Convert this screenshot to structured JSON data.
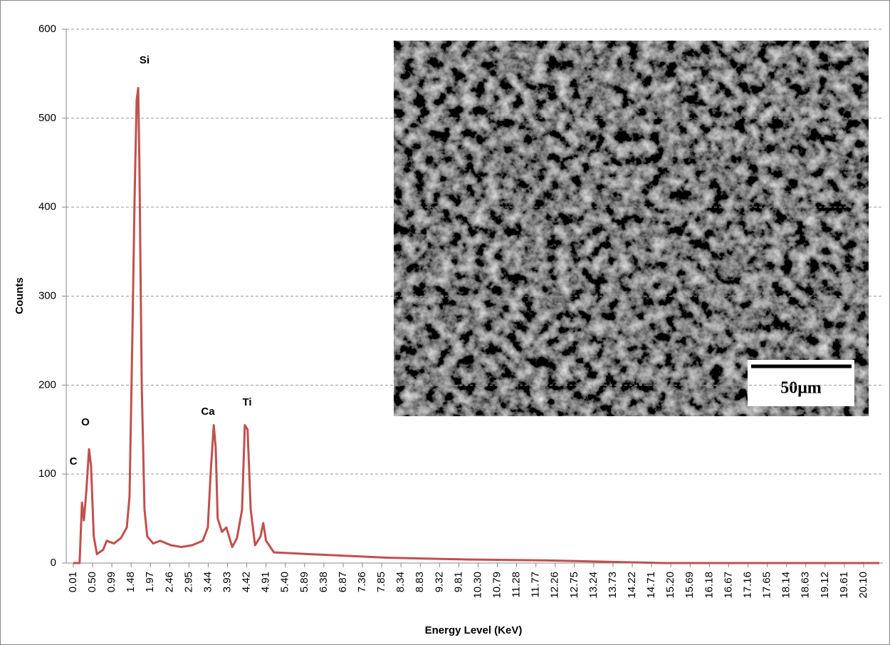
{
  "chart_data": {
    "type": "line",
    "x_label": "Energy Level (KeV)",
    "y_label": "Counts",
    "annotations": [
      "C",
      "O",
      "Si",
      "Ca",
      "Ti"
    ],
    "inset_scale_label": "50μm",
    "color": "#c0504d",
    "grid": true,
    "xlim": [
      -0.17,
      20.59
    ],
    "ylim": [
      0,
      600
    ],
    "yticks": [
      0,
      100,
      200,
      300,
      400,
      500,
      600
    ],
    "xticks": [
      0.01,
      {
        "value": 0.5,
        "label": "0.50"
      },
      0.99,
      1.48,
      1.97,
      2.46,
      2.95,
      3.44,
      3.93,
      4.42,
      4.91,
      {
        "value": 5.4,
        "label": "5.40"
      },
      5.89,
      6.38,
      6.87,
      7.36,
      7.85,
      8.34,
      8.83,
      9.32,
      9.81,
      {
        "value": 10.3,
        "label": "10.30"
      },
      10.79,
      11.28,
      11.77,
      12.26,
      12.75,
      13.24,
      13.73,
      14.22,
      14.71,
      {
        "value": 15.2,
        "label": "15.20"
      },
      15.69,
      16.18,
      16.67,
      17.16,
      17.65,
      18.14,
      18.63,
      19.12,
      19.61,
      {
        "value": 20.1,
        "label": "20.10"
      }
    ],
    "x": [
      0.01,
      0.17,
      0.23,
      0.28,
      0.34,
      0.41,
      0.46,
      0.53,
      0.61,
      0.77,
      0.86,
      1.04,
      1.22,
      1.37,
      1.44,
      1.51,
      1.57,
      1.62,
      1.66,
      1.69,
      1.75,
      1.82,
      1.89,
      2.04,
      2.22,
      2.49,
      2.76,
      3.03,
      3.3,
      3.43,
      3.5,
      3.58,
      3.63,
      3.68,
      3.79,
      3.9,
      4.05,
      4.17,
      4.3,
      4.37,
      4.44,
      4.52,
      4.63,
      4.77,
      4.84,
      4.91,
      5.11,
      6.0,
      8.0,
      10.0,
      12.0,
      14.0,
      15.0,
      20.5
    ],
    "values": [
      0,
      0,
      68,
      48,
      80,
      128,
      110,
      30,
      10,
      15,
      25,
      22,
      28,
      40,
      75,
      250,
      415,
      520,
      534,
      450,
      200,
      60,
      30,
      22,
      25,
      20,
      18,
      20,
      25,
      40,
      100,
      155,
      130,
      50,
      35,
      40,
      18,
      28,
      60,
      155,
      150,
      60,
      20,
      30,
      45,
      25,
      12,
      10,
      6,
      4,
      3,
      1,
      0,
      0
    ]
  }
}
